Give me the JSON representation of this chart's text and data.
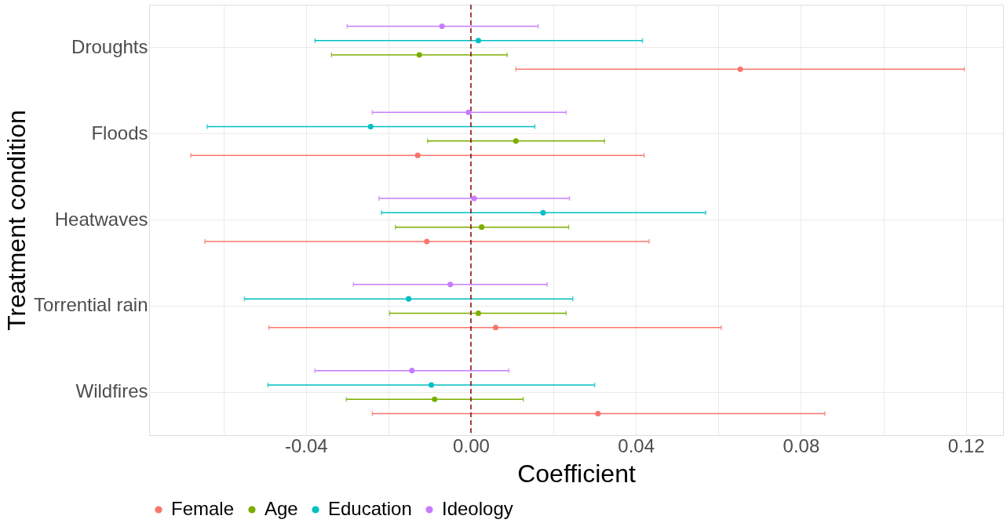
{
  "chart_data": {
    "type": "scatter",
    "orientation": "horizontal",
    "xlabel": "Coefficient",
    "ylabel": "Treatment condition",
    "categories": [
      "Droughts",
      "Floods",
      "Heatwaves",
      "Torrential rain",
      "Wildfires"
    ],
    "series": [
      {
        "name": "Female",
        "color": "#f8766d",
        "values": [
          0.0653,
          -0.0129,
          -0.0107,
          0.006,
          0.0308
        ],
        "errors": [
          [
            0.0109,
            0.1196
          ],
          [
            -0.0679,
            0.042
          ],
          [
            -0.0645,
            0.0432
          ],
          [
            -0.049,
            0.0607
          ],
          [
            -0.0239,
            0.0858
          ]
        ]
      },
      {
        "name": "Age",
        "color": "#7cae00",
        "values": [
          -0.0125,
          0.0109,
          0.0026,
          0.0018,
          -0.0088
        ],
        "errors": [
          [
            -0.0338,
            0.0088
          ],
          [
            -0.0105,
            0.0324
          ],
          [
            -0.0183,
            0.0237
          ],
          [
            -0.0197,
            0.0231
          ],
          [
            -0.0302,
            0.0127
          ]
        ]
      },
      {
        "name": "Education",
        "color": "#00bfc4",
        "values": [
          0.0018,
          -0.0243,
          0.0175,
          -0.0151,
          -0.0096
        ],
        "errors": [
          [
            -0.0378,
            0.0416
          ],
          [
            -0.0639,
            0.0155
          ],
          [
            -0.0217,
            0.0569
          ],
          [
            -0.0549,
            0.0247
          ],
          [
            -0.0492,
            0.03
          ]
        ]
      },
      {
        "name": "Ideology",
        "color": "#c77cff",
        "values": [
          -0.007,
          -0.0006,
          0.0008,
          -0.005,
          -0.0143
        ],
        "errors": [
          [
            -0.03,
            0.0163
          ],
          [
            -0.0239,
            0.0231
          ],
          [
            -0.0223,
            0.0239
          ],
          [
            -0.0285,
            0.0185
          ],
          [
            -0.0378,
            0.0092
          ]
        ]
      }
    ],
    "xlim": [
      -0.078,
      0.129
    ],
    "xticks": [
      {
        "value": -0.06,
        "label": null
      },
      {
        "value": -0.04,
        "label": "-0.04"
      },
      {
        "value": -0.02,
        "label": null
      },
      {
        "value": 0,
        "label": "0.00"
      },
      {
        "value": 0.02,
        "label": null
      },
      {
        "value": 0.04,
        "label": "0.04"
      },
      {
        "value": 0.06,
        "label": null
      },
      {
        "value": 0.08,
        "label": "0.08"
      },
      {
        "value": 0.1,
        "label": null
      },
      {
        "value": 0.12,
        "label": "0.12"
      }
    ],
    "ref_lines": [
      {
        "axis": "x",
        "value": 0,
        "color": "#8b0000",
        "line_style": "dashed"
      }
    ],
    "grid": true,
    "legend": "bottom",
    "marker": "circle"
  }
}
